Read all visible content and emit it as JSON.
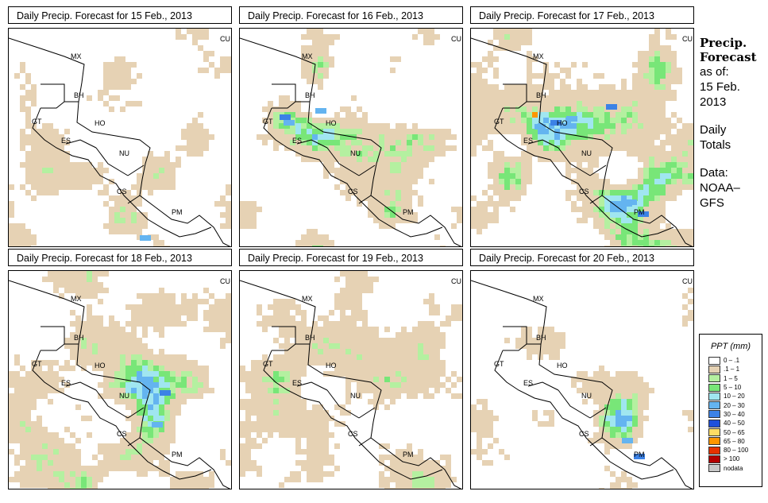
{
  "panels": [
    {
      "title": "Daily Precip. Forecast for  15 Feb., 2013",
      "day": 0
    },
    {
      "title": "Daily Precip. Forecast for  16 Feb., 2013",
      "day": 1
    },
    {
      "title": "Daily Precip. Forecast for  17 Feb., 2013",
      "day": 2
    },
    {
      "title": "Daily Precip. Forecast for  18 Feb., 2013",
      "day": 3
    },
    {
      "title": "Daily Precip. Forecast for  19 Feb., 2013",
      "day": 4
    },
    {
      "title": "Daily Precip. Forecast for  20 Feb., 2013",
      "day": 5
    }
  ],
  "map_labels": [
    "CU",
    "MX",
    "BH",
    "GT",
    "HO",
    "ES",
    "NU",
    "CS",
    "PM"
  ],
  "side": {
    "title_line1": "Precip.",
    "title_line2": "Forecast",
    "asof": "as of:",
    "date_line1": "15 Feb.",
    "date_line2": "2013",
    "daily1": "Daily",
    "daily2": "Totals",
    "data1": "Data:",
    "data2": "NOAA–",
    "data3": "GFS"
  },
  "legend": {
    "title": "PPT (mm)",
    "items": [
      {
        "label": "0 – .1",
        "color": "#ffffff"
      },
      {
        "label": ".1 – 1",
        "color": "#e6d2b4"
      },
      {
        "label": "1 – 5",
        "color": "#b4f0a0"
      },
      {
        "label": "5 – 10",
        "color": "#78e678"
      },
      {
        "label": "10 – 20",
        "color": "#a0e6f0"
      },
      {
        "label": "20 – 30",
        "color": "#64b4f0"
      },
      {
        "label": "30 – 40",
        "color": "#3c82e6"
      },
      {
        "label": "40 – 50",
        "color": "#1e50dc"
      },
      {
        "label": "50 – 65",
        "color": "#ffdc64"
      },
      {
        "label": "65 – 80",
        "color": "#ff9600"
      },
      {
        "label": "80 – 100",
        "color": "#e63200"
      },
      {
        "label": "> 100",
        "color": "#b40000"
      },
      {
        "label": "nodata",
        "color": "#c8c8c8"
      }
    ]
  }
}
